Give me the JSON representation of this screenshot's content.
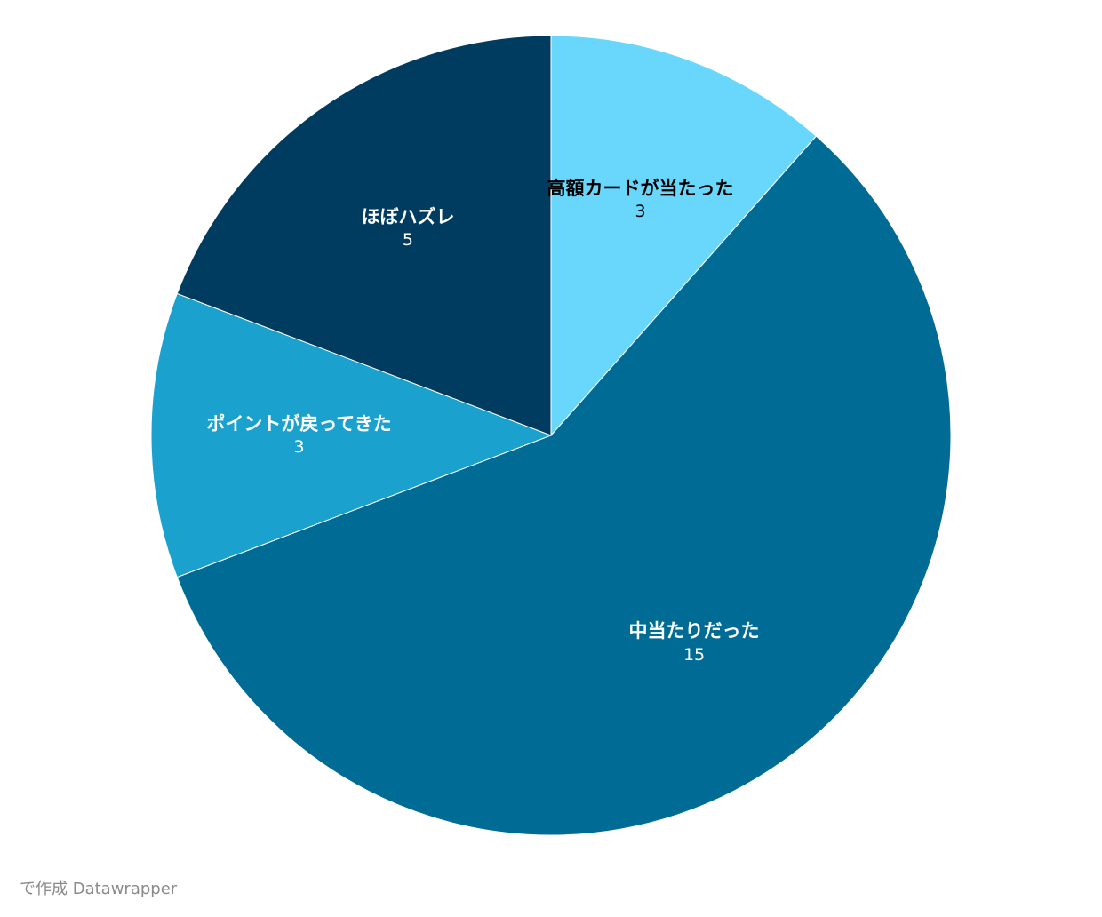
{
  "chart_data": {
    "type": "pie",
    "categories": [
      "高額カードが当たった",
      "中当たりだった",
      "ポイントが戻ってきた",
      "ほぼハズレ"
    ],
    "values": [
      3,
      15,
      3,
      5
    ],
    "colors": [
      "#69d6fc",
      "#006b95",
      "#1aa1cd",
      "#003c5f"
    ],
    "label_colors": [
      "#000000",
      "#ffffff",
      "#ffffff",
      "#ffffff"
    ]
  },
  "credit": "で作成 Datawrapper"
}
